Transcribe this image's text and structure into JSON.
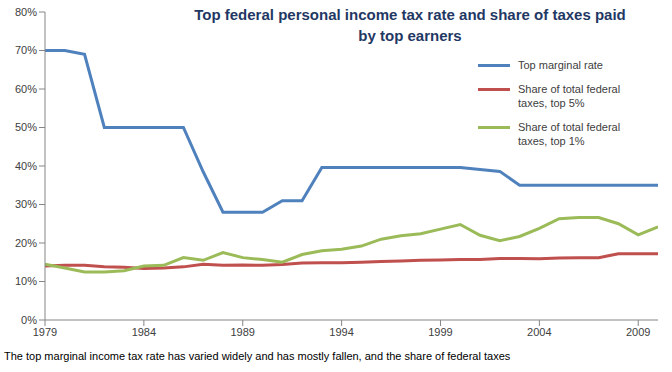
{
  "chart_data": {
    "type": "line",
    "title": "Top federal personal income tax rate and share of taxes paid by top earners",
    "annotations": [
      "The top marginal income tax rate has varied widely and has mostly fallen, and the share of federal taxes"
    ],
    "x": [
      1979,
      1980,
      1981,
      1982,
      1983,
      1984,
      1985,
      1986,
      1987,
      1988,
      1989,
      1990,
      1991,
      1992,
      1993,
      1994,
      1995,
      1996,
      1997,
      1998,
      1999,
      2000,
      2001,
      2002,
      2003,
      2004,
      2005,
      2006,
      2007,
      2008,
      2009,
      2010
    ],
    "series": [
      {
        "name": "Top marginal rate",
        "color": "#4f81bd",
        "values": [
          70,
          70,
          69,
          50,
          50,
          50,
          50,
          50,
          38.5,
          28,
          28,
          28,
          31,
          31,
          39.6,
          39.6,
          39.6,
          39.6,
          39.6,
          39.6,
          39.6,
          39.6,
          39.1,
          38.6,
          35,
          35,
          35,
          35,
          35,
          35,
          35,
          35
        ]
      },
      {
        "name": "Share of total federal taxes, top 5%",
        "color": "#c0504d",
        "values": [
          14,
          14.2,
          14.2,
          13.8,
          13.7,
          13.4,
          13.5,
          13.8,
          14.5,
          14.2,
          14.3,
          14.2,
          14.4,
          14.8,
          14.9,
          14.9,
          15,
          15.2,
          15.3,
          15.5,
          15.6,
          15.7,
          15.7,
          16,
          16,
          15.9,
          16.1,
          16.2,
          16.2,
          17.2,
          17.2,
          17.2
        ]
      },
      {
        "name": "Share of total federal taxes, top 1%",
        "color": "#9bbb59",
        "values": [
          14.5,
          13.5,
          12.5,
          12.5,
          12.8,
          14,
          14.2,
          16.2,
          15.5,
          17.5,
          16.2,
          15.7,
          15,
          17,
          18,
          18.4,
          19.2,
          21,
          21.9,
          22.4,
          23.6,
          24.8,
          22,
          20.6,
          21.7,
          23.8,
          26.3,
          26.6,
          26.6,
          25,
          22.1,
          24.2
        ]
      }
    ],
    "xlim": [
      1979,
      2010
    ],
    "xticks": [
      1979,
      1984,
      1989,
      1994,
      1999,
      2004,
      2009
    ],
    "ylim": [
      0,
      80
    ],
    "yticks": [
      {
        "value": 0,
        "label": "0%"
      },
      {
        "value": 10,
        "label": "10%"
      },
      {
        "value": 20,
        "label": "20%"
      },
      {
        "value": 30,
        "label": "30%"
      },
      {
        "value": 40,
        "label": "40%"
      },
      {
        "value": 50,
        "label": "50%"
      },
      {
        "value": 60,
        "label": "60%"
      },
      {
        "value": 70,
        "label": "70%"
      },
      {
        "value": 80,
        "label": "80%"
      }
    ],
    "grid": false,
    "legend": "right"
  }
}
